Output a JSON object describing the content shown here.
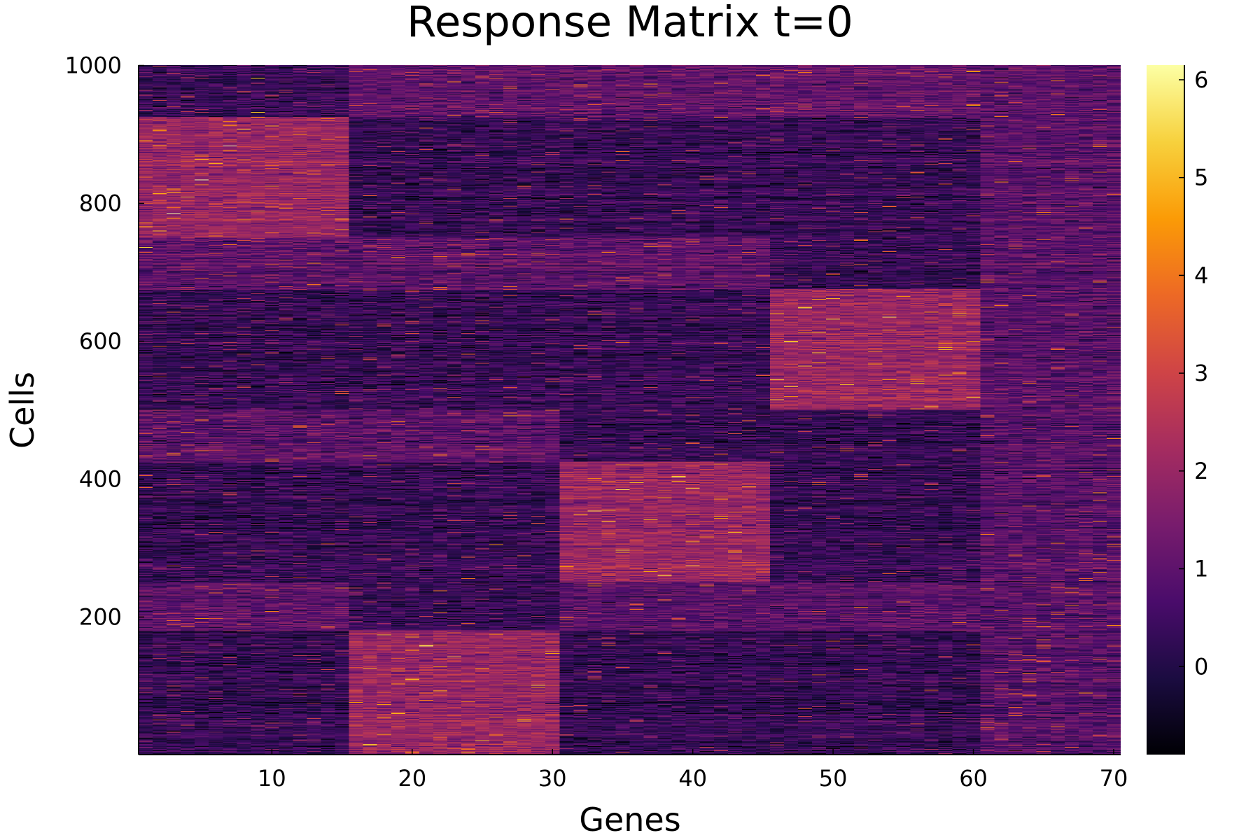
{
  "chart_data": {
    "type": "heatmap",
    "title": "Response Matrix t=0",
    "xlabel": "Genes",
    "ylabel": "Cells",
    "xlim": [
      0.5,
      70.5
    ],
    "ylim": [
      0.5,
      1000.5
    ],
    "x_ticks": [
      10,
      20,
      30,
      40,
      50,
      60,
      70
    ],
    "y_ticks": [
      200,
      400,
      600,
      800,
      1000
    ],
    "n_genes": 70,
    "n_cells": 1000,
    "colormap": "inferno",
    "colorbar": {
      "range": [
        -0.9,
        6.15
      ],
      "ticks": [
        0,
        1,
        2,
        3,
        4,
        5,
        6
      ],
      "stops": [
        "#000004",
        "#1b0c41",
        "#4a0c6b",
        "#781c6d",
        "#a52c60",
        "#cf4446",
        "#ed6925",
        "#fb9b06",
        "#f7d13d",
        "#fcffa4"
      ]
    },
    "background_mean": 0.3,
    "noise_sd": 0.45,
    "blocks": [
      {
        "genes": [
          1,
          15
        ],
        "cells": [
          751,
          925
        ],
        "mean": 2.0
      },
      {
        "genes": [
          16,
          30
        ],
        "cells": [
          1,
          180
        ],
        "mean": 2.0
      },
      {
        "genes": [
          31,
          45
        ],
        "cells": [
          251,
          425
        ],
        "mean": 2.0
      },
      {
        "genes": [
          46,
          60
        ],
        "cells": [
          501,
          675
        ],
        "mean": 2.0
      }
    ],
    "bands": [
      {
        "genes": [
          16,
          60
        ],
        "cells": [
          925,
          1000
        ],
        "mean": 1.0
      },
      {
        "genes": [
          1,
          45
        ],
        "cells": [
          675,
          750
        ],
        "mean": 1.0
      },
      {
        "genes": [
          1,
          30
        ],
        "cells": [
          425,
          500
        ],
        "mean": 1.0
      },
      {
        "genes": [
          1,
          15
        ],
        "cells": [
          180,
          250
        ],
        "mean": 1.0
      },
      {
        "genes": [
          31,
          60
        ],
        "cells": [
          180,
          250
        ],
        "mean": 0.9
      }
    ],
    "noisy_genes": [
      61,
      70
    ],
    "noisy_mean": 0.9
  }
}
